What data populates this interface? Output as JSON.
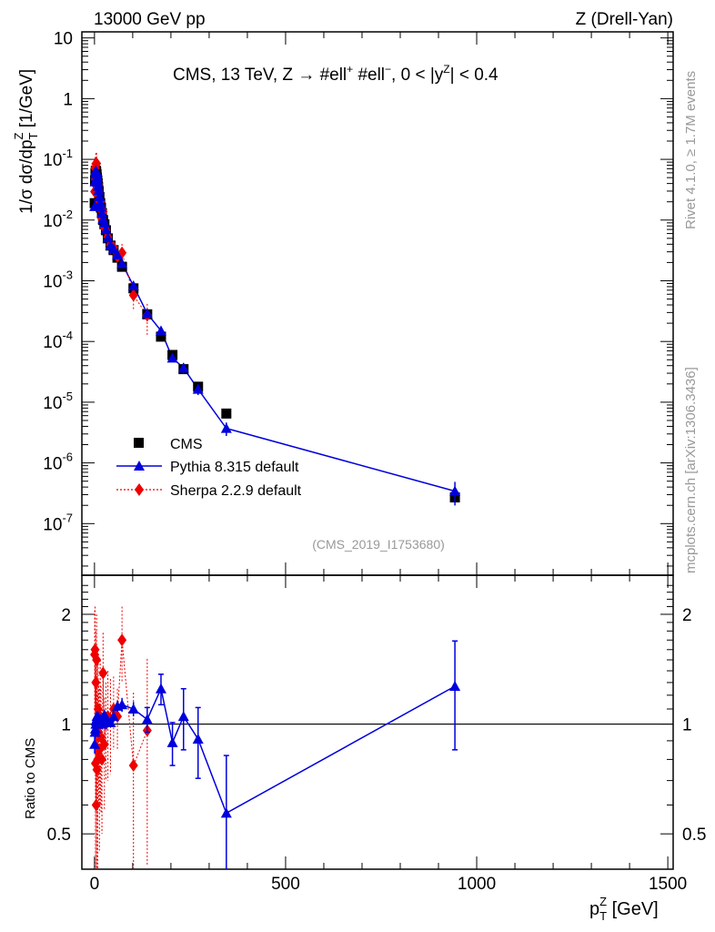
{
  "header": {
    "left": "13000 GeV pp",
    "right": "Z (Drell-Yan)"
  },
  "side_labels": {
    "rivet": "Rivet 4.1.0, ≥ 1.7M events",
    "mcplots": "mcplots.cern.ch [arXiv:1306.3436]"
  },
  "analysis_tag": "(CMS_2019_I1753680)",
  "colors": {
    "cms": "#000000",
    "pythia": "#0000dd",
    "sherpa": "#ee0000",
    "side_text": "#999999"
  },
  "chart_data": {
    "type": "scatter",
    "title_parts": {
      "main": "CMS, 13 TeV, Z →  #ell",
      "sup1": "+",
      "mid": " #ell",
      "sup2": "−",
      "end": ", 0 < |y",
      "sup3": "Z",
      "tail": "| < 0.4"
    },
    "ylabel": {
      "main": "1/σ dσ/dp",
      "sub": "T",
      "sup": "Z",
      "unit": " [1/GeV]"
    },
    "xlabel": {
      "main": "p",
      "sub": "T",
      "sup": "Z",
      "unit": " [GeV]"
    },
    "ratio_ylabel": "Ratio to CMS",
    "xlim": [
      -33,
      1514
    ],
    "ylim_log10": [
      -7.85,
      1.1
    ],
    "ratio_ylim": [
      0.4,
      2.56
    ],
    "x_ticks": [
      {
        "v": 0,
        "label": "0"
      },
      {
        "v": 500,
        "label": "500"
      },
      {
        "v": 1000,
        "label": "1000"
      },
      {
        "v": 1500,
        "label": "1500"
      }
    ],
    "y_ticks": [
      {
        "e": 1,
        "base": "10",
        "exp": ""
      },
      {
        "e": 0,
        "base": "1",
        "exp": ""
      },
      {
        "e": -1,
        "base": "10",
        "exp": "-1"
      },
      {
        "e": -2,
        "base": "10",
        "exp": "-2"
      },
      {
        "e": -3,
        "base": "10",
        "exp": "-3"
      },
      {
        "e": -4,
        "base": "10",
        "exp": "-4"
      },
      {
        "e": -5,
        "base": "10",
        "exp": "-5"
      },
      {
        "e": -6,
        "base": "10",
        "exp": "-6"
      },
      {
        "e": -7,
        "base": "10",
        "exp": "-7"
      }
    ],
    "ratio_ticks": [
      {
        "v": 0.5,
        "label": "0.5"
      },
      {
        "v": 1,
        "label": "1"
      },
      {
        "v": 2,
        "label": "2"
      }
    ],
    "legend": [
      {
        "name": "CMS",
        "marker": "square"
      },
      {
        "name": "Pythia 8.315 default",
        "marker": "triangle"
      },
      {
        "name": "Sherpa 2.2.9 default",
        "marker": "diamond"
      }
    ],
    "legend_position": "bottom-left",
    "x": [
      0.5,
      1.5,
      2.5,
      3.5,
      4.5,
      5.5,
      6.5,
      7.5,
      8.5,
      9.5,
      11,
      13,
      15,
      17,
      19.5,
      22.5,
      26,
      30,
      35,
      42,
      50,
      60,
      72,
      102,
      138,
      174,
      204,
      233,
      271,
      345,
      943
    ],
    "series": [
      {
        "name": "CMS",
        "values": [
          0.019,
          0.045,
          0.06,
          0.065,
          0.062,
          0.057,
          0.05,
          0.045,
          0.04,
          0.035,
          0.03,
          0.024,
          0.019,
          0.016,
          0.013,
          0.01,
          0.0085,
          0.0068,
          0.005,
          0.0038,
          0.0032,
          0.0024,
          0.0017,
          0.00075,
          0.00028,
          0.00012,
          6e-05,
          3.5e-05,
          1.8e-05,
          6.5e-06,
          2.7e-07
        ]
      },
      {
        "name": "Pythia 8.315 default",
        "ratio": [
          0.88,
          0.95,
          0.97,
          1.0,
          1.02,
          1.03,
          1.05,
          1.04,
          1.05,
          1.03,
          1.02,
          1.01,
          1.03,
          1.02,
          1.0,
          1.04,
          1.06,
          1.03,
          1.02,
          1.01,
          1.05,
          1.12,
          1.13,
          1.1,
          1.03,
          1.25,
          0.89,
          1.05,
          0.91,
          0.57,
          1.27
        ],
        "ratio_err": [
          0.05,
          0.04,
          0.03,
          0.03,
          0.03,
          0.03,
          0.03,
          0.03,
          0.03,
          0.03,
          0.03,
          0.03,
          0.03,
          0.03,
          0.03,
          0.03,
          0.03,
          0.03,
          0.03,
          0.03,
          0.04,
          0.04,
          0.05,
          0.05,
          0.08,
          0.12,
          0.12,
          0.2,
          0.2,
          0.25,
          0.42
        ]
      },
      {
        "name": "Sherpa 2.2.9 default",
        "ratio": [
          1.55,
          1.6,
          0.78,
          1.3,
          0.6,
          1.5,
          0.75,
          1.0,
          0.8,
          1.1,
          0.95,
          0.85,
          1.05,
          0.92,
          0.8,
          1.38,
          0.88,
          1.0,
          1.05,
          1.03,
          1.1,
          1.05,
          1.7,
          0.77,
          0.96
        ],
        "ratio_err": [
          0.5,
          0.5,
          0.4,
          0.5,
          0.35,
          0.5,
          0.4,
          0.45,
          0.4,
          0.4,
          0.35,
          0.4,
          0.45,
          0.35,
          0.3,
          0.4,
          0.3,
          0.3,
          0.35,
          0.3,
          0.25,
          0.2,
          0.4,
          0.45,
          0.55
        ]
      }
    ]
  }
}
